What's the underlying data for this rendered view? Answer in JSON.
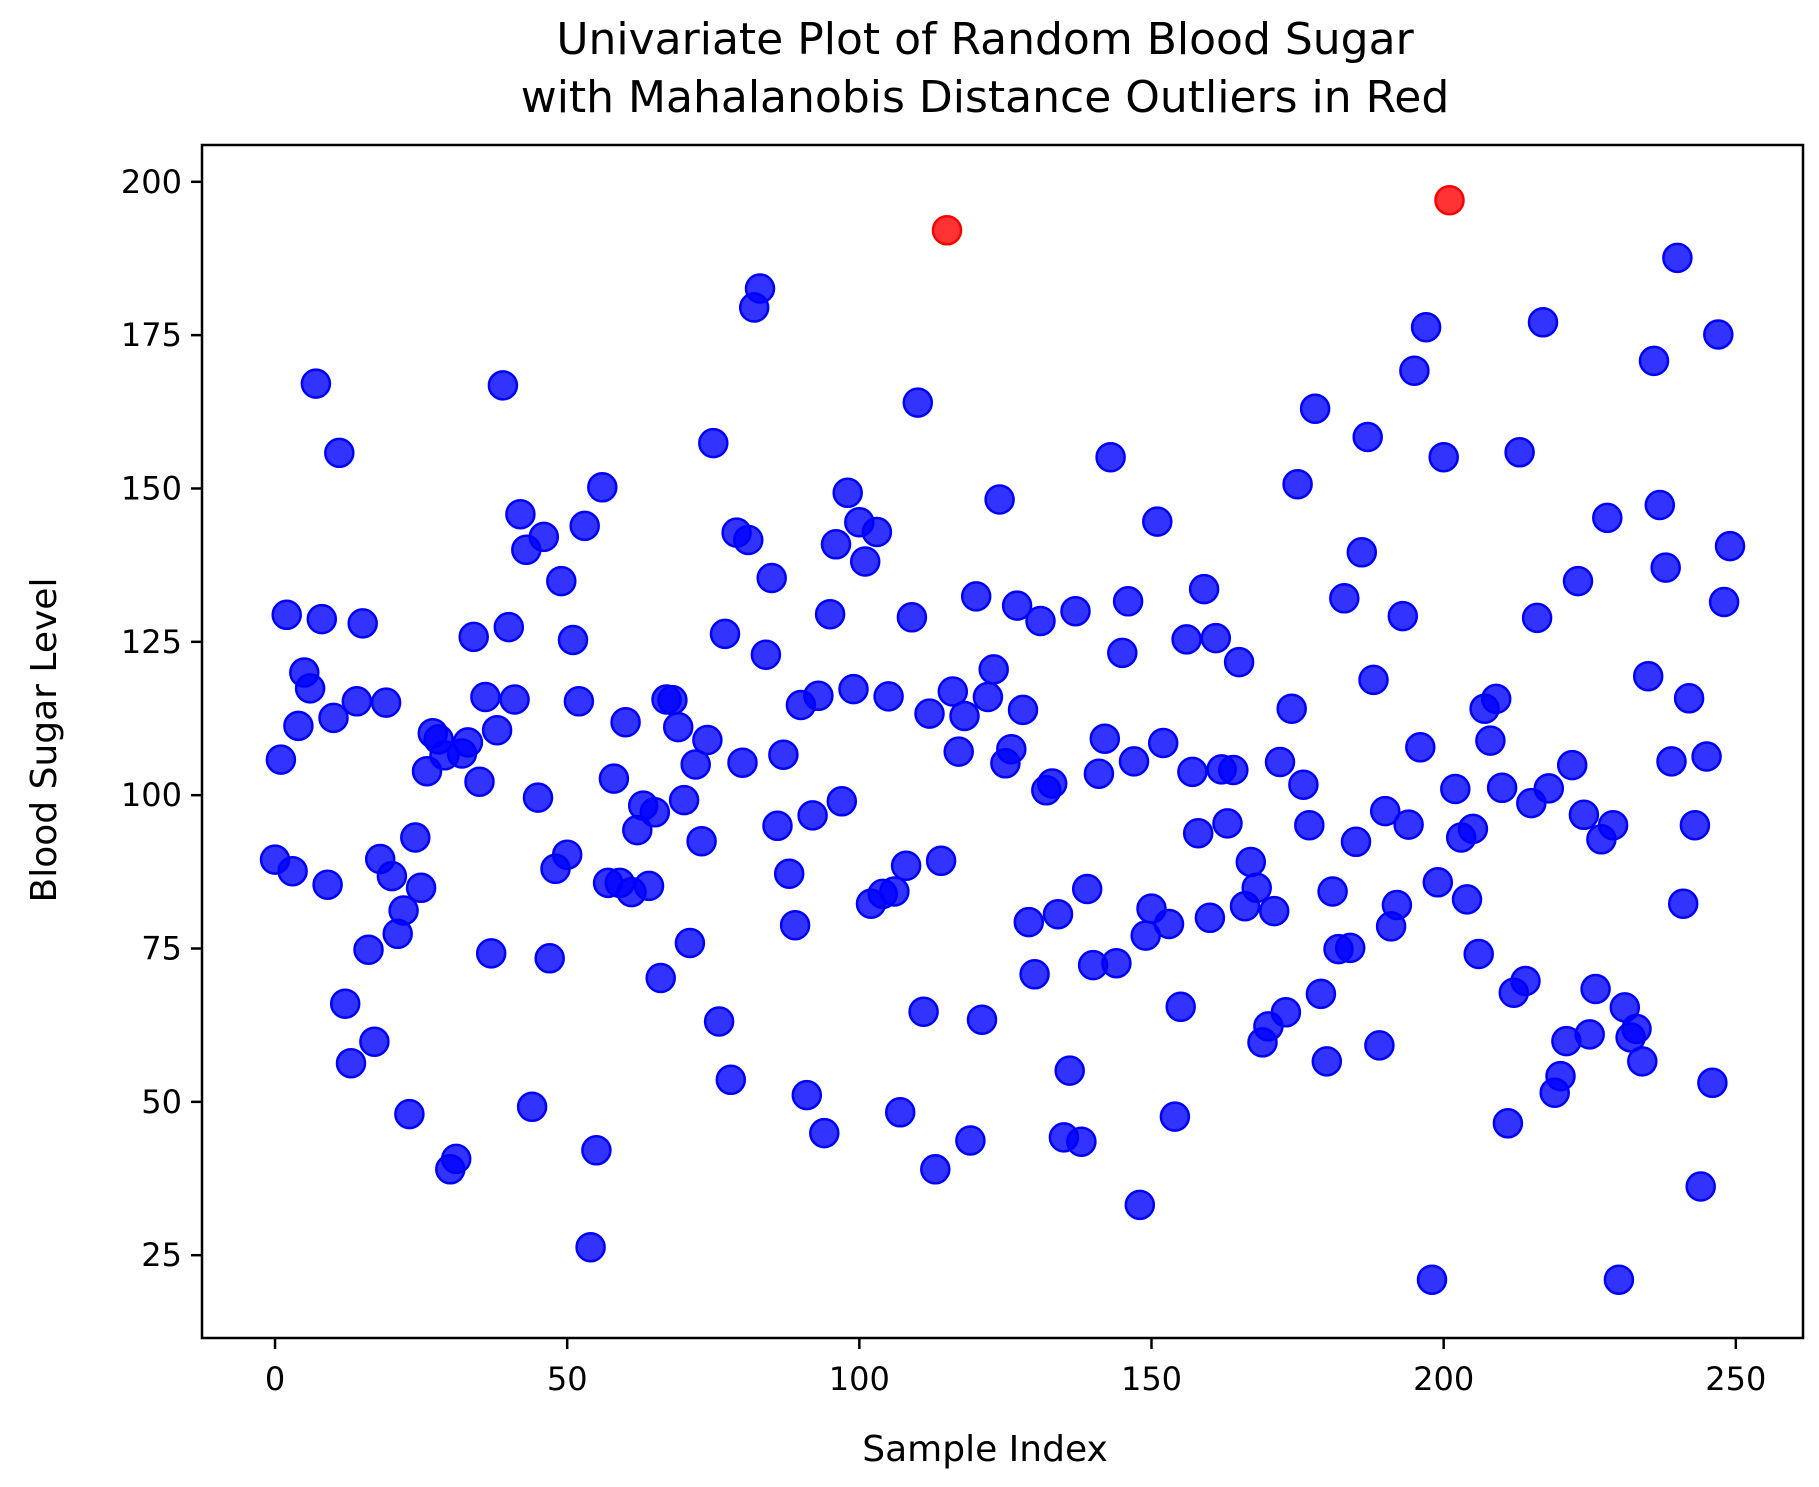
{
  "chart_data": {
    "type": "scatter",
    "title_line1": "Univariate Plot of Random Blood Sugar",
    "title_line2": "with Mahalanobis Distance Outliers in Red",
    "xlabel": "Sample Index",
    "ylabel": "Blood Sugar Level",
    "xlim": [
      -12.5,
      261.5
    ],
    "ylim": [
      11.5,
      206
    ],
    "xticks": [
      0,
      50,
      100,
      150,
      200,
      250
    ],
    "yticks": [
      25,
      50,
      75,
      100,
      125,
      150,
      175,
      200
    ],
    "grid": false,
    "legend": "none",
    "colors": {
      "normal": "#0000ff",
      "outlier": "#ff0000"
    },
    "series": [
      {
        "values": [
          [
            0,
            89.5
          ],
          [
            1,
            105.8
          ],
          [
            2,
            129.4
          ],
          [
            3,
            87.6
          ],
          [
            4,
            111.3
          ],
          [
            5,
            120.0
          ],
          [
            6,
            117.4
          ],
          [
            7,
            167.1
          ],
          [
            8,
            128.7
          ],
          [
            9,
            85.4
          ],
          [
            10,
            112.6
          ],
          [
            11,
            155.8
          ],
          [
            12,
            66.0
          ],
          [
            13,
            56.3
          ],
          [
            14,
            115.3
          ],
          [
            15,
            128.0
          ],
          [
            16,
            74.8
          ],
          [
            17,
            59.8
          ],
          [
            18,
            89.6
          ],
          [
            19,
            115.1
          ],
          [
            20,
            86.8
          ],
          [
            21,
            77.4
          ],
          [
            22,
            81.2
          ],
          [
            23,
            48.0
          ],
          [
            24,
            93.1
          ],
          [
            25,
            84.9
          ],
          [
            26,
            103.9
          ],
          [
            27,
            110.1
          ],
          [
            28,
            109.1
          ],
          [
            29,
            106.5
          ],
          [
            30,
            39.0
          ],
          [
            31,
            40.7
          ],
          [
            32,
            106.8
          ],
          [
            33,
            108.6
          ],
          [
            34,
            125.8
          ],
          [
            35,
            102.2
          ],
          [
            36,
            116.0
          ],
          [
            37,
            74.2
          ],
          [
            38,
            110.6
          ],
          [
            39,
            166.8
          ],
          [
            40,
            127.4
          ],
          [
            41,
            115.6
          ],
          [
            42,
            145.8
          ],
          [
            43,
            140.0
          ],
          [
            44,
            49.2
          ],
          [
            45,
            99.6
          ],
          [
            46,
            142.1
          ],
          [
            47,
            73.4
          ],
          [
            48,
            88.0
          ],
          [
            49,
            134.9
          ],
          [
            50,
            90.3
          ],
          [
            51,
            125.3
          ],
          [
            52,
            115.3
          ],
          [
            53,
            143.9
          ],
          [
            54,
            26.3
          ],
          [
            55,
            42.1
          ],
          [
            56,
            150.2
          ],
          [
            57,
            85.7
          ],
          [
            58,
            102.7
          ],
          [
            59,
            85.7
          ],
          [
            60,
            111.9
          ],
          [
            61,
            84.2
          ],
          [
            62,
            94.3
          ],
          [
            63,
            98.3
          ],
          [
            64,
            85.2
          ],
          [
            65,
            97.2
          ],
          [
            66,
            70.2
          ],
          [
            67,
            115.6
          ],
          [
            68,
            115.5
          ],
          [
            69,
            111.1
          ],
          [
            70,
            99.2
          ],
          [
            71,
            75.9
          ],
          [
            72,
            105.0
          ],
          [
            73,
            92.5
          ],
          [
            74,
            109.0
          ],
          [
            75,
            157.4
          ],
          [
            76,
            63.1
          ],
          [
            77,
            126.3
          ],
          [
            78,
            53.6
          ],
          [
            79,
            142.8
          ],
          [
            80,
            105.3
          ],
          [
            81,
            141.6
          ],
          [
            82,
            179.5
          ],
          [
            83,
            182.6
          ],
          [
            84,
            122.9
          ],
          [
            85,
            135.4
          ],
          [
            86,
            95.0
          ],
          [
            87,
            106.6
          ],
          [
            88,
            87.2
          ],
          [
            89,
            78.8
          ],
          [
            90,
            114.7
          ],
          [
            91,
            51.1
          ],
          [
            92,
            96.7
          ],
          [
            93,
            116.2
          ],
          [
            94,
            44.9
          ],
          [
            95,
            129.5
          ],
          [
            96,
            140.9
          ],
          [
            97,
            99.0
          ],
          [
            98,
            149.3
          ],
          [
            99,
            117.3
          ],
          [
            100,
            144.5
          ],
          [
            101,
            138.1
          ],
          [
            102,
            82.3
          ],
          [
            103,
            142.9
          ],
          [
            104,
            83.9
          ],
          [
            105,
            116.1
          ],
          [
            106,
            84.3
          ],
          [
            107,
            48.3
          ],
          [
            108,
            88.5
          ],
          [
            109,
            129.0
          ],
          [
            110,
            164.0
          ],
          [
            111,
            64.7
          ],
          [
            112,
            113.3
          ],
          [
            113,
            39.0
          ],
          [
            114,
            89.3
          ],
          [
            115,
            192.1
          ],
          [
            116,
            116.9
          ],
          [
            117,
            107.1
          ],
          [
            118,
            112.9
          ],
          [
            119,
            43.7
          ],
          [
            120,
            132.4
          ],
          [
            121,
            63.4
          ],
          [
            122,
            116.0
          ],
          [
            123,
            120.5
          ],
          [
            124,
            148.2
          ],
          [
            125,
            105.2
          ],
          [
            126,
            107.5
          ],
          [
            127,
            130.9
          ],
          [
            128,
            113.9
          ],
          [
            129,
            79.3
          ],
          [
            130,
            70.8
          ],
          [
            131,
            128.4
          ],
          [
            132,
            100.8
          ],
          [
            133,
            101.9
          ],
          [
            134,
            80.6
          ],
          [
            135,
            44.2
          ],
          [
            136,
            55.1
          ],
          [
            137,
            130.0
          ],
          [
            138,
            43.5
          ],
          [
            139,
            84.7
          ],
          [
            140,
            72.3
          ],
          [
            141,
            103.5
          ],
          [
            142,
            109.2
          ],
          [
            143,
            155.1
          ],
          [
            144,
            72.6
          ],
          [
            145,
            123.2
          ],
          [
            146,
            131.6
          ],
          [
            147,
            105.5
          ],
          [
            148,
            33.2
          ],
          [
            149,
            77.1
          ],
          [
            150,
            81.5
          ],
          [
            151,
            144.6
          ],
          [
            152,
            108.5
          ],
          [
            153,
            79.0
          ],
          [
            154,
            47.6
          ],
          [
            155,
            65.5
          ],
          [
            156,
            125.4
          ],
          [
            157,
            103.8
          ],
          [
            158,
            93.8
          ],
          [
            159,
            133.6
          ],
          [
            160,
            80.0
          ],
          [
            161,
            125.6
          ],
          [
            162,
            104.2
          ],
          [
            163,
            95.4
          ],
          [
            164,
            104.1
          ],
          [
            165,
            121.7
          ],
          [
            166,
            81.9
          ],
          [
            167,
            89.1
          ],
          [
            168,
            84.9
          ],
          [
            169,
            59.7
          ],
          [
            170,
            62.3
          ],
          [
            171,
            81.1
          ],
          [
            172,
            105.4
          ],
          [
            173,
            64.6
          ],
          [
            174,
            114.1
          ],
          [
            175,
            150.7
          ],
          [
            176,
            101.7
          ],
          [
            177,
            95.1
          ],
          [
            178,
            163.0
          ],
          [
            179,
            67.6
          ],
          [
            180,
            56.6
          ],
          [
            181,
            84.3
          ],
          [
            182,
            74.9
          ],
          [
            183,
            132.1
          ],
          [
            184,
            75.1
          ],
          [
            185,
            92.4
          ],
          [
            186,
            139.6
          ],
          [
            187,
            158.4
          ],
          [
            188,
            118.8
          ],
          [
            189,
            59.2
          ],
          [
            190,
            97.4
          ],
          [
            191,
            78.6
          ],
          [
            192,
            82.1
          ],
          [
            193,
            129.2
          ],
          [
            194,
            95.2
          ],
          [
            195,
            169.2
          ],
          [
            196,
            107.8
          ],
          [
            197,
            176.3
          ],
          [
            198,
            21.0
          ],
          [
            199,
            85.8
          ],
          [
            200,
            155.1
          ],
          [
            201,
            197.0
          ],
          [
            202,
            101.0
          ],
          [
            203,
            93.1
          ],
          [
            204,
            83.0
          ],
          [
            205,
            94.5
          ],
          [
            206,
            74.1
          ],
          [
            207,
            114.1
          ],
          [
            208,
            108.9
          ],
          [
            209,
            115.7
          ],
          [
            210,
            101.2
          ],
          [
            211,
            46.5
          ],
          [
            212,
            67.8
          ],
          [
            213,
            155.9
          ],
          [
            214,
            69.7
          ],
          [
            215,
            98.7
          ],
          [
            216,
            128.9
          ],
          [
            217,
            177.1
          ],
          [
            218,
            101.1
          ],
          [
            219,
            51.5
          ],
          [
            220,
            54.2
          ],
          [
            221,
            59.9
          ],
          [
            222,
            104.9
          ],
          [
            223,
            134.9
          ],
          [
            224,
            96.8
          ],
          [
            225,
            61.0
          ],
          [
            226,
            68.4
          ],
          [
            227,
            92.8
          ],
          [
            228,
            145.2
          ],
          [
            229,
            95.1
          ],
          [
            230,
            21.0
          ],
          [
            231,
            65.4
          ],
          [
            232,
            60.5
          ],
          [
            233,
            61.9
          ],
          [
            234,
            56.6
          ],
          [
            235,
            119.4
          ],
          [
            236,
            170.8
          ],
          [
            237,
            147.3
          ],
          [
            238,
            137.1
          ],
          [
            239,
            105.5
          ],
          [
            240,
            187.6
          ],
          [
            241,
            82.3
          ],
          [
            242,
            115.8
          ],
          [
            243,
            95.1
          ],
          [
            244,
            36.2
          ],
          [
            245,
            106.3
          ],
          [
            246,
            53.1
          ],
          [
            247,
            175.1
          ],
          [
            248,
            131.5
          ],
          [
            249,
            140.6
          ]
        ],
        "outlier_indices": [
          115,
          201
        ]
      }
    ]
  }
}
